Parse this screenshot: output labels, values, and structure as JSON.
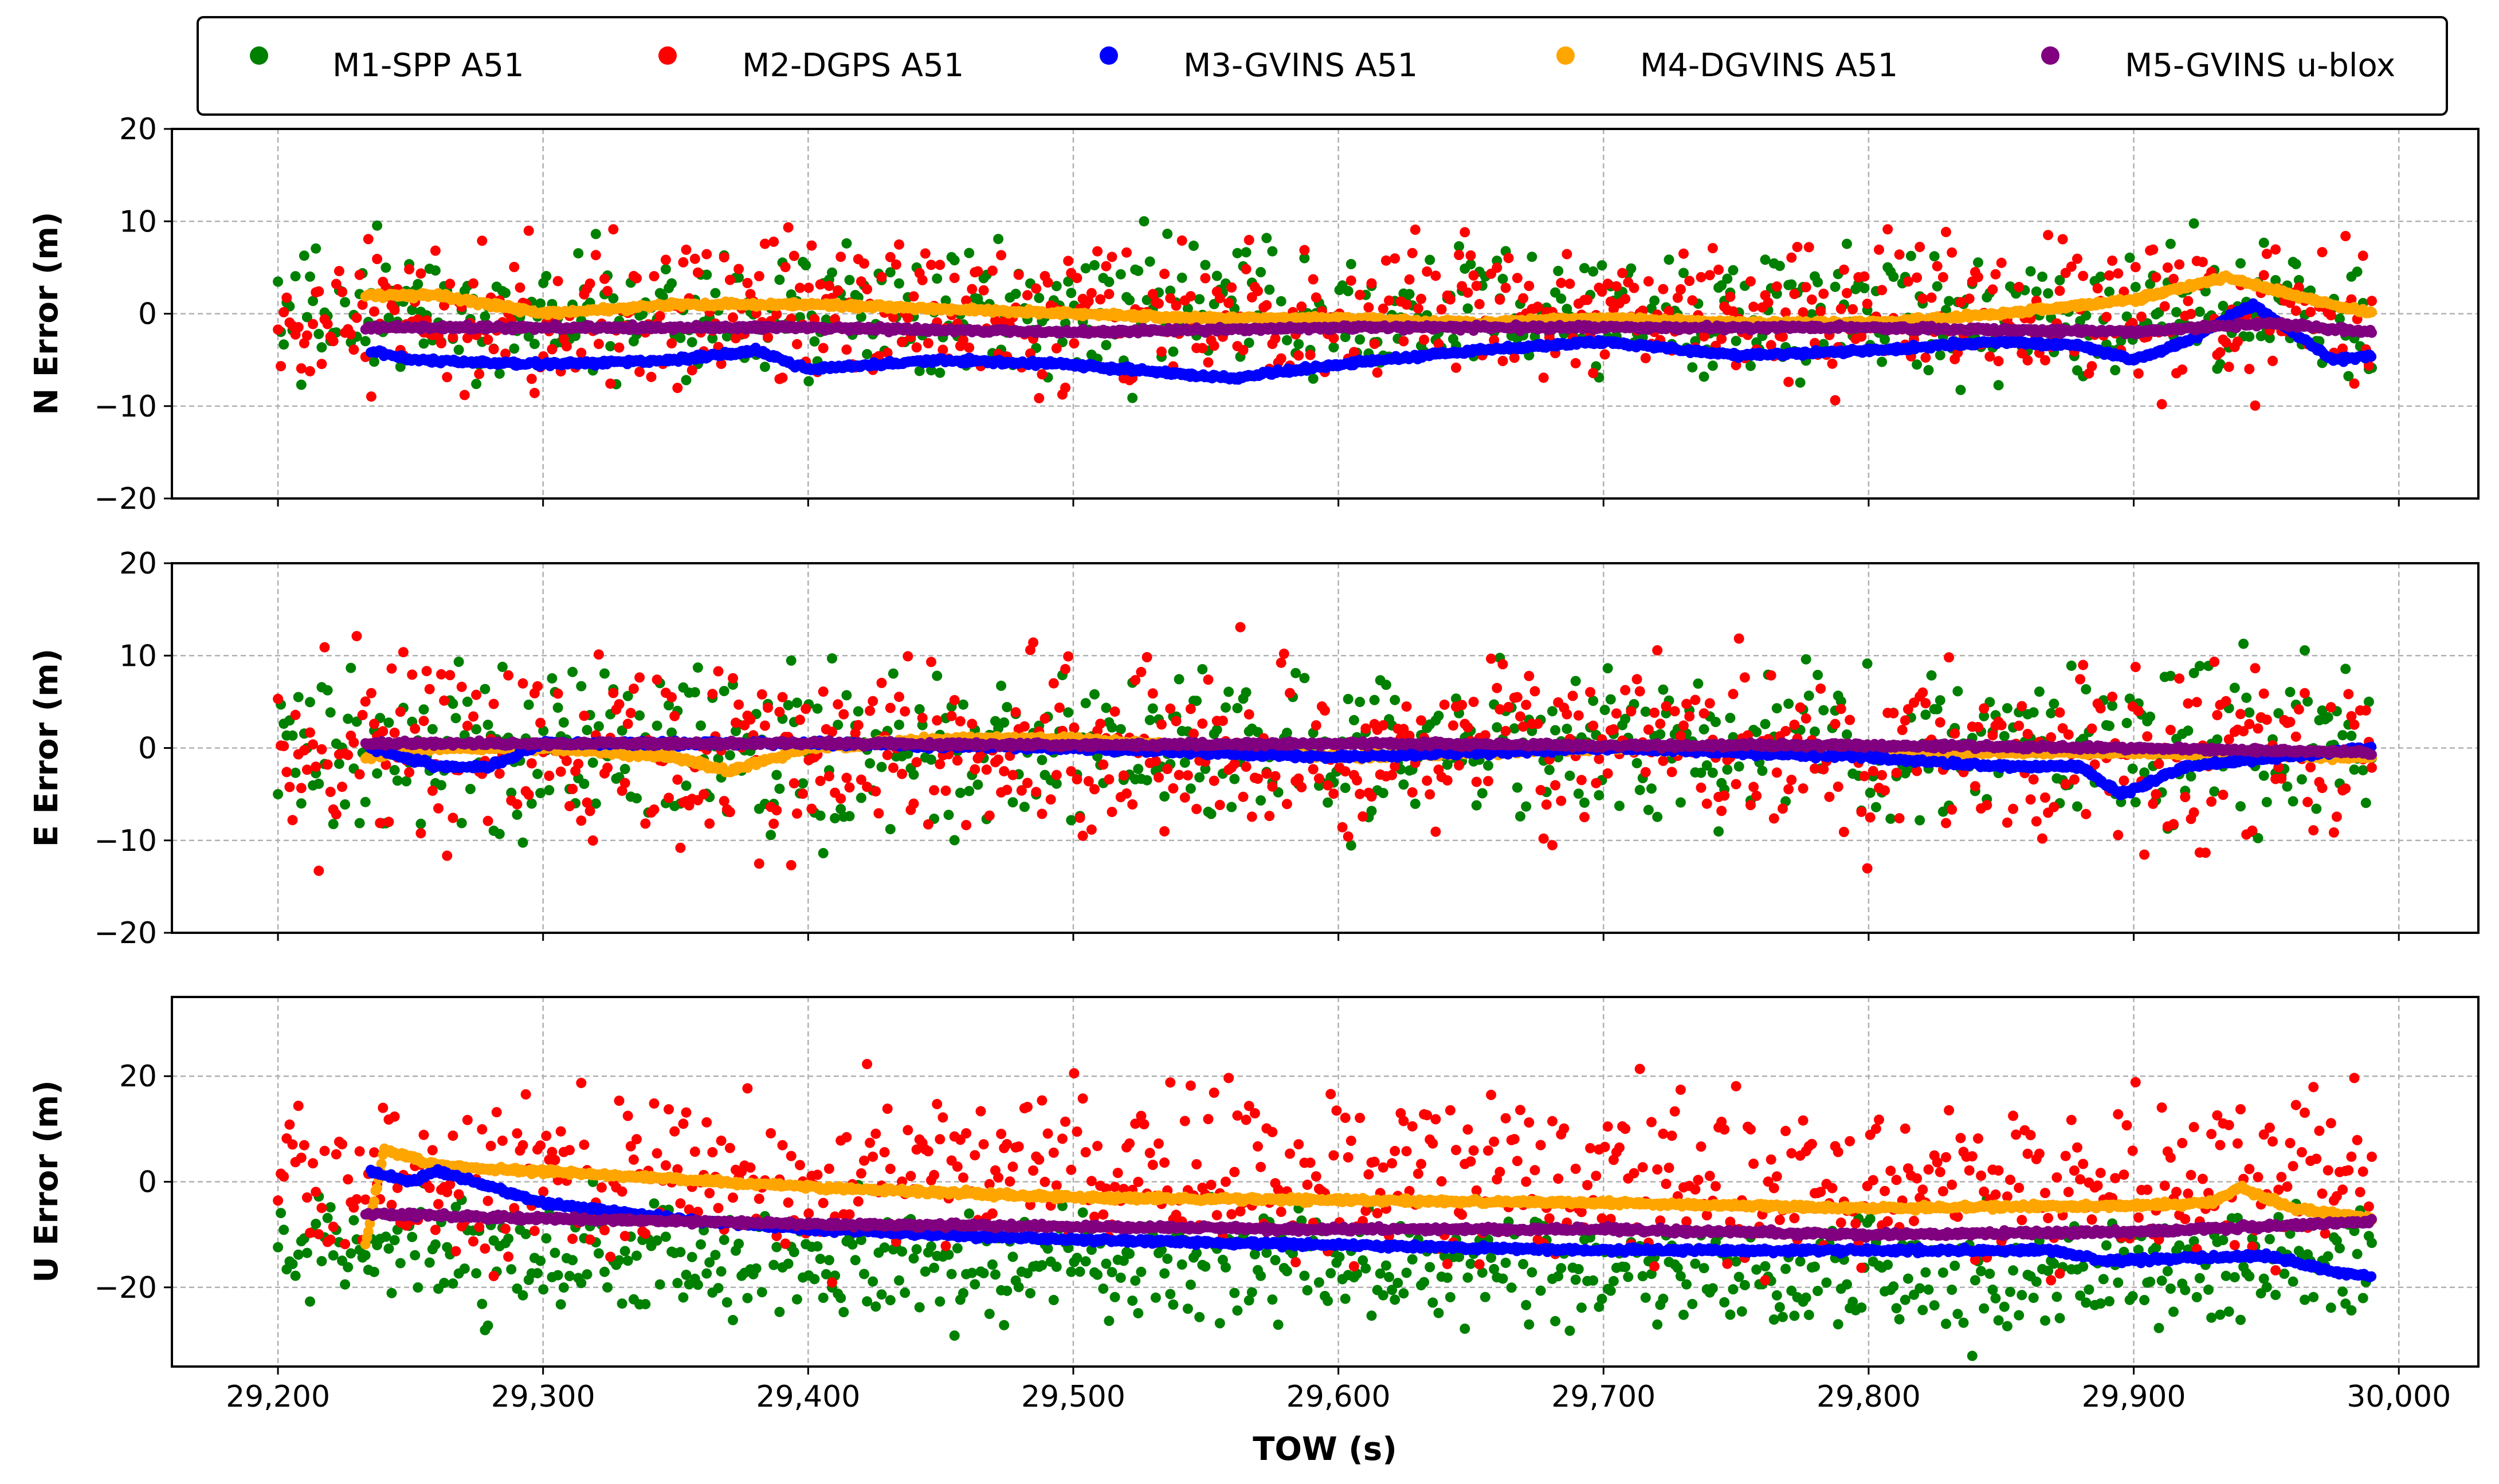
{
  "chart_data": {
    "type": "scatter",
    "xlabel": "TOW (s)",
    "xlim": [
      29160,
      30030
    ],
    "xticks": [
      29200,
      29300,
      29400,
      29500,
      29600,
      29700,
      29800,
      29900,
      30000
    ],
    "xtick_labels": [
      "29,200",
      "29,300",
      "29,400",
      "29,500",
      "29,600",
      "29,700",
      "29,800",
      "29,900",
      "30,000"
    ],
    "grid": true,
    "legend_position": "top",
    "series_meta": [
      {
        "key": "m1",
        "name": "M1-SPP A51",
        "color": "#008000",
        "x_range": [
          29200,
          29990
        ]
      },
      {
        "key": "m2",
        "name": "M2-DGPS A51",
        "color": "#ff0000",
        "x_range": [
          29200,
          29990
        ]
      },
      {
        "key": "m3",
        "name": "M3-GVINS A51",
        "color": "#0000ff",
        "x_range": [
          29235,
          29990
        ]
      },
      {
        "key": "m4",
        "name": "M4-DGVINS A51",
        "color": "#ffa500",
        "x_range": [
          29233,
          29990
        ]
      },
      {
        "key": "m5",
        "name": "M5-GVINS u-blox",
        "color": "#800080",
        "x_range": [
          29233,
          29990
        ]
      }
    ],
    "panels": [
      {
        "key": "N",
        "ylabel": "N Error (m)",
        "ylim": [
          -20,
          20
        ],
        "yticks": [
          -20,
          -10,
          0,
          10,
          20
        ],
        "ytick_labels": [
          "−20",
          "−10",
          "0",
          "10",
          "20"
        ],
        "m1": {
          "center": [
            [
              29200,
              0
            ],
            [
              29400,
              0
            ],
            [
              29600,
              0
            ],
            [
              29800,
              0
            ],
            [
              29990,
              0
            ]
          ],
          "spread": 5
        },
        "m2": {
          "center": [
            [
              29200,
              0
            ],
            [
              29400,
              0
            ],
            [
              29600,
              0
            ],
            [
              29800,
              0
            ],
            [
              29990,
              0
            ]
          ],
          "spread": 5.5
        },
        "m3": {
          "trend": [
            [
              29235,
              -4
            ],
            [
              29250,
              -5
            ],
            [
              29300,
              -5.5
            ],
            [
              29350,
              -5
            ],
            [
              29380,
              -4
            ],
            [
              29400,
              -6
            ],
            [
              29450,
              -5
            ],
            [
              29500,
              -5.5
            ],
            [
              29520,
              -6
            ],
            [
              29560,
              -7
            ],
            [
              29600,
              -5.5
            ],
            [
              29650,
              -4
            ],
            [
              29700,
              -3
            ],
            [
              29750,
              -4.5
            ],
            [
              29800,
              -4
            ],
            [
              29850,
              -3
            ],
            [
              29880,
              -3.5
            ],
            [
              29900,
              -5
            ],
            [
              29920,
              -3
            ],
            [
              29945,
              1
            ],
            [
              29960,
              -2
            ],
            [
              29975,
              -5
            ],
            [
              29990,
              -4.5
            ]
          ]
        },
        "m4": {
          "trend": [
            [
              29233,
              2
            ],
            [
              29260,
              2
            ],
            [
              29300,
              0
            ],
            [
              29350,
              1
            ],
            [
              29400,
              1
            ],
            [
              29450,
              0.5
            ],
            [
              29500,
              0
            ],
            [
              29550,
              -0.5
            ],
            [
              29600,
              -0.5
            ],
            [
              29650,
              -1
            ],
            [
              29700,
              -0.5
            ],
            [
              29750,
              -1
            ],
            [
              29800,
              -1
            ],
            [
              29850,
              0
            ],
            [
              29900,
              1.5
            ],
            [
              29935,
              4
            ],
            [
              29960,
              2
            ],
            [
              29990,
              0
            ]
          ]
        },
        "m5": {
          "trend": [
            [
              29233,
              -1.5
            ],
            [
              29300,
              -1.5
            ],
            [
              29400,
              -1.5
            ],
            [
              29500,
              -2
            ],
            [
              29600,
              -1.5
            ],
            [
              29700,
              -1.5
            ],
            [
              29800,
              -1.5
            ],
            [
              29900,
              -2
            ],
            [
              29950,
              -1
            ],
            [
              29990,
              -2
            ]
          ]
        }
      },
      {
        "key": "E",
        "ylabel": "E Error (m)",
        "ylim": [
          -20,
          20
        ],
        "yticks": [
          -20,
          -10,
          0,
          10,
          20
        ],
        "ytick_labels": [
          "−20",
          "−10",
          "0",
          "10",
          "20"
        ],
        "m1": {
          "center": [
            [
              29200,
              0
            ],
            [
              29400,
              0
            ],
            [
              29600,
              0
            ],
            [
              29800,
              0
            ],
            [
              29990,
              0
            ]
          ],
          "spread": 6
        },
        "m2": {
          "center": [
            [
              29200,
              0
            ],
            [
              29400,
              0
            ],
            [
              29600,
              0
            ],
            [
              29800,
              0
            ],
            [
              29990,
              0
            ]
          ],
          "spread": 6.5
        },
        "m3": {
          "trend": [
            [
              29235,
              0
            ],
            [
              29260,
              -2
            ],
            [
              29280,
              -2
            ],
            [
              29300,
              0.5
            ],
            [
              29400,
              0.5
            ],
            [
              29500,
              0
            ],
            [
              29550,
              -0.5
            ],
            [
              29600,
              -1
            ],
            [
              29700,
              0
            ],
            [
              29800,
              -1
            ],
            [
              29850,
              -2
            ],
            [
              29880,
              -2
            ],
            [
              29895,
              -5
            ],
            [
              29920,
              -2
            ],
            [
              29990,
              0
            ]
          ]
        },
        "m4": {
          "trend": [
            [
              29233,
              -1
            ],
            [
              29260,
              0
            ],
            [
              29300,
              0
            ],
            [
              29350,
              -1
            ],
            [
              29370,
              -2.5
            ],
            [
              29400,
              0
            ],
            [
              29450,
              1
            ],
            [
              29500,
              1
            ],
            [
              29550,
              0
            ],
            [
              29600,
              -1
            ],
            [
              29700,
              0
            ],
            [
              29800,
              -0.5
            ],
            [
              29900,
              -0.5
            ],
            [
              29990,
              -1
            ]
          ]
        },
        "m5": {
          "trend": [
            [
              29233,
              0.5
            ],
            [
              29300,
              0.5
            ],
            [
              29400,
              0.5
            ],
            [
              29500,
              0.3
            ],
            [
              29600,
              0.5
            ],
            [
              29700,
              0.3
            ],
            [
              29800,
              0.3
            ],
            [
              29900,
              0
            ],
            [
              29990,
              -0.5
            ]
          ]
        }
      },
      {
        "key": "U",
        "ylabel": "U Error (m)",
        "ylim": [
          -35,
          35
        ],
        "yticks": [
          -20,
          0,
          20
        ],
        "ytick_labels": [
          "−20",
          "0",
          "20"
        ],
        "m1": {
          "center": [
            [
              29200,
              -12
            ],
            [
              29300,
              -14
            ],
            [
              29400,
              -15
            ],
            [
              29600,
              -16
            ],
            [
              29800,
              -18
            ],
            [
              29990,
              -15
            ]
          ],
          "spread": 8
        },
        "m2": {
          "center": [
            [
              29200,
              0
            ],
            [
              29300,
              2
            ],
            [
              29500,
              3
            ],
            [
              29700,
              2
            ],
            [
              29900,
              0
            ],
            [
              29990,
              5
            ]
          ],
          "spread": 11
        },
        "m3": {
          "trend": [
            [
              29235,
              2
            ],
            [
              29250,
              0
            ],
            [
              29260,
              2
            ],
            [
              29300,
              -4
            ],
            [
              29350,
              -7
            ],
            [
              29400,
              -9
            ],
            [
              29500,
              -11
            ],
            [
              29600,
              -12
            ],
            [
              29700,
              -13
            ],
            [
              29800,
              -13
            ],
            [
              29870,
              -13
            ],
            [
              29890,
              -15
            ],
            [
              29950,
              -14
            ],
            [
              29975,
              -17
            ],
            [
              29990,
              -18
            ]
          ]
        },
        "m4": {
          "trend": [
            [
              29233,
              -12
            ],
            [
              29240,
              6
            ],
            [
              29260,
              3
            ],
            [
              29300,
              2
            ],
            [
              29400,
              -1
            ],
            [
              29500,
              -3
            ],
            [
              29600,
              -3.5
            ],
            [
              29700,
              -4
            ],
            [
              29800,
              -5
            ],
            [
              29900,
              -4.5
            ],
            [
              29930,
              -4
            ],
            [
              29940,
              -1
            ],
            [
              29960,
              -5
            ],
            [
              29990,
              -7
            ]
          ]
        },
        "m5": {
          "trend": [
            [
              29233,
              -6
            ],
            [
              29300,
              -7
            ],
            [
              29400,
              -8
            ],
            [
              29500,
              -8.5
            ],
            [
              29600,
              -9
            ],
            [
              29700,
              -9
            ],
            [
              29800,
              -10
            ],
            [
              29900,
              -9.5
            ],
            [
              29990,
              -7.5
            ]
          ]
        }
      }
    ]
  }
}
